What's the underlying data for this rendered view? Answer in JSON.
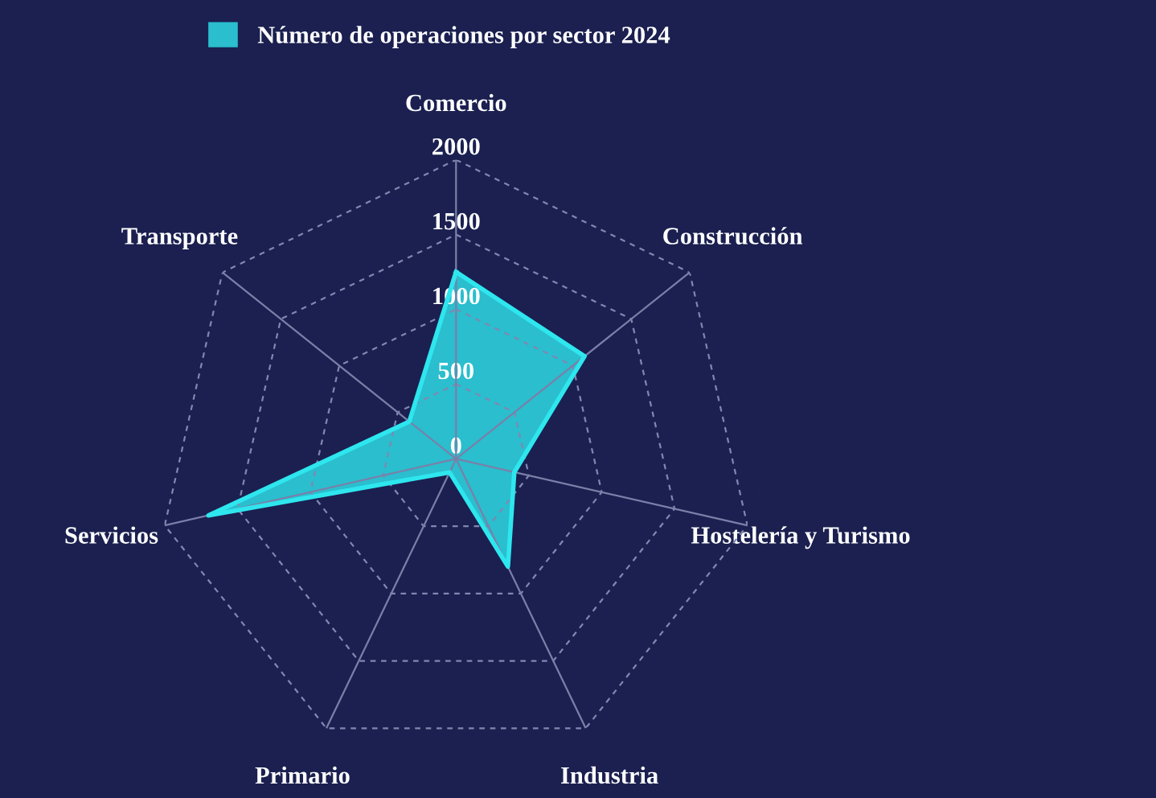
{
  "chart_data": {
    "type": "radar",
    "categories": [
      "Comercio",
      "Construcción",
      "Hostelería y Turismo",
      "Industria",
      "Primario",
      "Servicios",
      "Transporte"
    ],
    "series": [
      {
        "name": "Número de operaciones por sector 2024",
        "color": "#2ee6ee",
        "values": [
          1250,
          1100,
          400,
          800,
          100,
          1700,
          400
        ]
      }
    ],
    "ylim": [
      0,
      2000
    ],
    "yticks": [
      0,
      500,
      1000,
      1500,
      2000
    ],
    "grid": true,
    "legend": "top",
    "marker": "none"
  }
}
